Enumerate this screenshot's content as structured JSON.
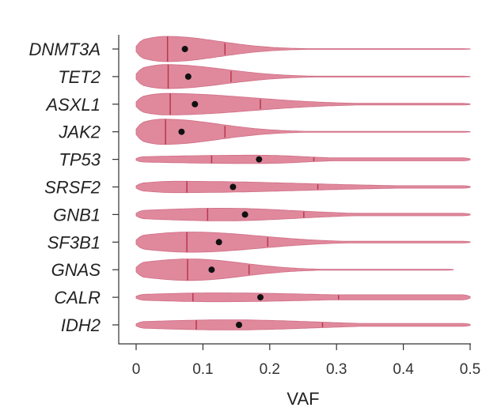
{
  "chart_data": {
    "type": "violin",
    "title": "",
    "xlabel": "VAF",
    "ylabel": "",
    "xlim": [
      0,
      0.5
    ],
    "xticks": [
      0,
      0.1,
      0.2,
      0.3,
      0.4,
      0.5
    ],
    "xtick_labels": [
      "0",
      "0.1",
      "0.2",
      "0.3",
      "0.4",
      "0.5"
    ],
    "colors": {
      "fill": "#e0899c",
      "stroke": "#cf6d85",
      "quartile": "#b8374f",
      "mean": "#111111"
    },
    "series": [
      {
        "gene": "DNMT3A",
        "range": [
          0.0,
          0.5
        ],
        "median": 0.047,
        "q3": 0.133,
        "mean": 0.073,
        "mode": 0.045,
        "peak": 1.0,
        "tail": 0.03
      },
      {
        "gene": "TET2",
        "range": [
          0.0,
          0.5
        ],
        "median": 0.048,
        "q3": 0.142,
        "mean": 0.078,
        "mode": 0.045,
        "peak": 0.95,
        "tail": 0.04
      },
      {
        "gene": "ASXL1",
        "range": [
          0.0,
          0.5
        ],
        "median": 0.051,
        "q3": 0.186,
        "mean": 0.088,
        "mode": 0.045,
        "peak": 0.85,
        "tail": 0.07
      },
      {
        "gene": "JAK2",
        "range": [
          0.0,
          0.5
        ],
        "median": 0.044,
        "q3": 0.133,
        "mean": 0.068,
        "mode": 0.04,
        "peak": 1.0,
        "tail": 0.04
      },
      {
        "gene": "TP53",
        "range": [
          0.0,
          0.5
        ],
        "median": 0.113,
        "q3": 0.266,
        "mean": 0.184,
        "mode": 0.18,
        "peak": 0.33,
        "tail": 0.12
      },
      {
        "gene": "SRSF2",
        "range": [
          0.0,
          0.5
        ],
        "median": 0.076,
        "q3": 0.272,
        "mean": 0.145,
        "mode": 0.06,
        "peak": 0.45,
        "tail": 0.1
      },
      {
        "gene": "GNB1",
        "range": [
          0.0,
          0.5
        ],
        "median": 0.107,
        "q3": 0.251,
        "mean": 0.163,
        "mode": 0.13,
        "peak": 0.5,
        "tail": 0.1
      },
      {
        "gene": "SF3B1",
        "range": [
          0.0,
          0.5
        ],
        "median": 0.076,
        "q3": 0.197,
        "mean": 0.124,
        "mode": 0.08,
        "peak": 0.8,
        "tail": 0.07
      },
      {
        "gene": "GNAS",
        "range": [
          0.0,
          0.475
        ],
        "median": 0.077,
        "q3": 0.169,
        "mean": 0.113,
        "mode": 0.08,
        "peak": 0.85,
        "tail": 0.04
      },
      {
        "gene": "CALR",
        "range": [
          0.0,
          0.5
        ],
        "median": 0.085,
        "q3": 0.303,
        "mean": 0.186,
        "mode": 0.12,
        "peak": 0.35,
        "tail": 0.2
      },
      {
        "gene": "IDH2",
        "range": [
          0.0,
          0.5
        ],
        "median": 0.09,
        "q3": 0.279,
        "mean": 0.154,
        "mode": 0.14,
        "peak": 0.4,
        "tail": 0.12
      }
    ]
  }
}
